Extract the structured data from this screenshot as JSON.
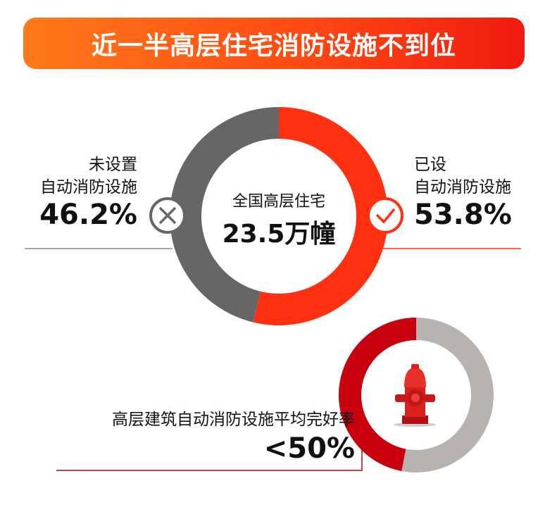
{
  "title": "近一半高层住宅消防设施不到位",
  "colors": {
    "accent_red": "#ff3010",
    "gray": "#666666",
    "dark_red": "#c8000e",
    "light_gray": "#b7b3b1",
    "banner_start": "#ff7a1a",
    "banner_end": "#f01a10"
  },
  "chart_data": [
    {
      "type": "pie",
      "donut": true,
      "center_label": "全国高层住宅",
      "center_value": "23.5万幢",
      "slices": [
        {
          "name_line1": "已设",
          "name_line2": "自动消防设施",
          "value": 53.8,
          "label": "53.8%",
          "color": "#ff3010",
          "icon": "check-icon"
        },
        {
          "name_line1": "未设置",
          "name_line2": "自动消防设施",
          "value": 46.2,
          "label": "46.2%",
          "color": "#666666",
          "icon": "cross-icon"
        }
      ]
    },
    {
      "type": "pie",
      "donut": true,
      "label": "高层建筑自动消防设施平均完好率",
      "value_label": "<50%",
      "center_icon": "fire-hydrant-icon",
      "slices": [
        {
          "value": 47,
          "color": "#c8000e"
        },
        {
          "value": 53,
          "color": "#b7b3b1"
        }
      ]
    }
  ]
}
